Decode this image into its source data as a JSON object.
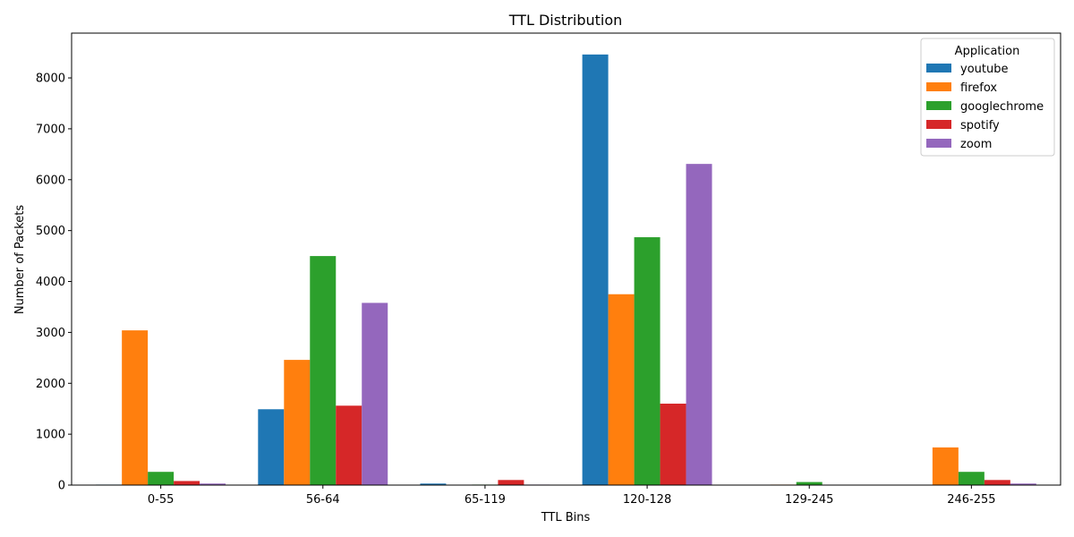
{
  "chart_data": {
    "type": "bar",
    "title": "TTL Distribution",
    "xlabel": "TTL Bins",
    "ylabel": "Number of Packets",
    "categories": [
      "0-55",
      "56-64",
      "65-119",
      "120-128",
      "129-245",
      "246-255"
    ],
    "ylim": [
      0,
      8880
    ],
    "yticks": [
      0,
      1000,
      2000,
      3000,
      4000,
      5000,
      6000,
      7000,
      8000
    ],
    "grid": false,
    "legend": {
      "title": "Application",
      "placement": "top-right"
    },
    "series": [
      {
        "name": "youtube",
        "color": "#1f77b4",
        "values": [
          10,
          1490,
          30,
          8460,
          0,
          0
        ]
      },
      {
        "name": "firefox",
        "color": "#ff7f0e",
        "values": [
          3040,
          2460,
          0,
          3750,
          10,
          740
        ]
      },
      {
        "name": "googlechrome",
        "color": "#2ca02c",
        "values": [
          260,
          4500,
          10,
          4870,
          60,
          260
        ]
      },
      {
        "name": "spotify",
        "color": "#d62728",
        "values": [
          80,
          1560,
          100,
          1600,
          0,
          100
        ]
      },
      {
        "name": "zoom",
        "color": "#9467bd",
        "values": [
          30,
          3580,
          10,
          6310,
          0,
          30
        ]
      }
    ]
  }
}
